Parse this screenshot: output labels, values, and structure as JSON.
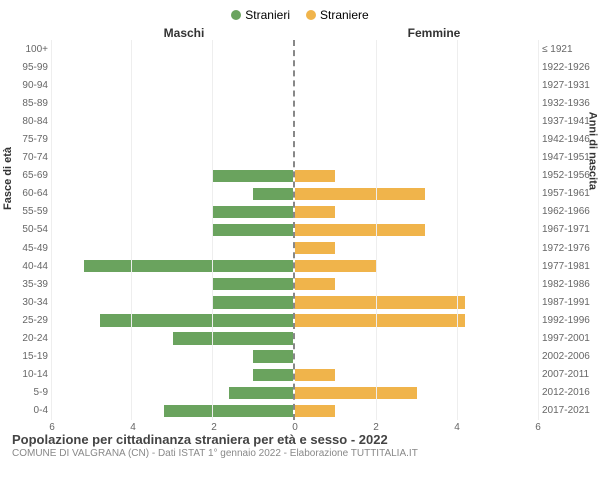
{
  "legend": {
    "male": "Stranieri",
    "female": "Straniere"
  },
  "headers": {
    "left": "Maschi",
    "right": "Femmine"
  },
  "axis_labels": {
    "left": "Fasce di età",
    "right": "Anni di nascita"
  },
  "colors": {
    "male": "#6aa35e",
    "female": "#f0b44b",
    "grid": "#eeeeee",
    "divider": "#888888",
    "background": "#ffffff"
  },
  "chart": {
    "type": "bar-pyramid",
    "xmax": 6,
    "xticks": [
      0,
      2,
      4,
      6
    ],
    "bar_height_ratio": 0.68,
    "rows": [
      {
        "age": "100+",
        "birth": "≤ 1921",
        "m": 0,
        "f": 0
      },
      {
        "age": "95-99",
        "birth": "1922-1926",
        "m": 0,
        "f": 0
      },
      {
        "age": "90-94",
        "birth": "1927-1931",
        "m": 0,
        "f": 0
      },
      {
        "age": "85-89",
        "birth": "1932-1936",
        "m": 0,
        "f": 0
      },
      {
        "age": "80-84",
        "birth": "1937-1941",
        "m": 0,
        "f": 0
      },
      {
        "age": "75-79",
        "birth": "1942-1946",
        "m": 0,
        "f": 0
      },
      {
        "age": "70-74",
        "birth": "1947-1951",
        "m": 0,
        "f": 0
      },
      {
        "age": "65-69",
        "birth": "1952-1956",
        "m": 2,
        "f": 1
      },
      {
        "age": "60-64",
        "birth": "1957-1961",
        "m": 1,
        "f": 3.2
      },
      {
        "age": "55-59",
        "birth": "1962-1966",
        "m": 2,
        "f": 1
      },
      {
        "age": "50-54",
        "birth": "1967-1971",
        "m": 2,
        "f": 3.2
      },
      {
        "age": "45-49",
        "birth": "1972-1976",
        "m": 0,
        "f": 1
      },
      {
        "age": "40-44",
        "birth": "1977-1981",
        "m": 5.2,
        "f": 2
      },
      {
        "age": "35-39",
        "birth": "1982-1986",
        "m": 2,
        "f": 1
      },
      {
        "age": "30-34",
        "birth": "1987-1991",
        "m": 2,
        "f": 4.2
      },
      {
        "age": "25-29",
        "birth": "1992-1996",
        "m": 4.8,
        "f": 4.2
      },
      {
        "age": "20-24",
        "birth": "1997-2001",
        "m": 3,
        "f": 0
      },
      {
        "age": "15-19",
        "birth": "2002-2006",
        "m": 1,
        "f": 0
      },
      {
        "age": "10-14",
        "birth": "2007-2011",
        "m": 1,
        "f": 1
      },
      {
        "age": "5-9",
        "birth": "2012-2016",
        "m": 1.6,
        "f": 3
      },
      {
        "age": "0-4",
        "birth": "2017-2021",
        "m": 3.2,
        "f": 1
      }
    ]
  },
  "footer": {
    "title": "Popolazione per cittadinanza straniera per età e sesso - 2022",
    "subtitle": "COMUNE DI VALGRANA (CN) - Dati ISTAT 1° gennaio 2022 - Elaborazione TUTTITALIA.IT"
  }
}
